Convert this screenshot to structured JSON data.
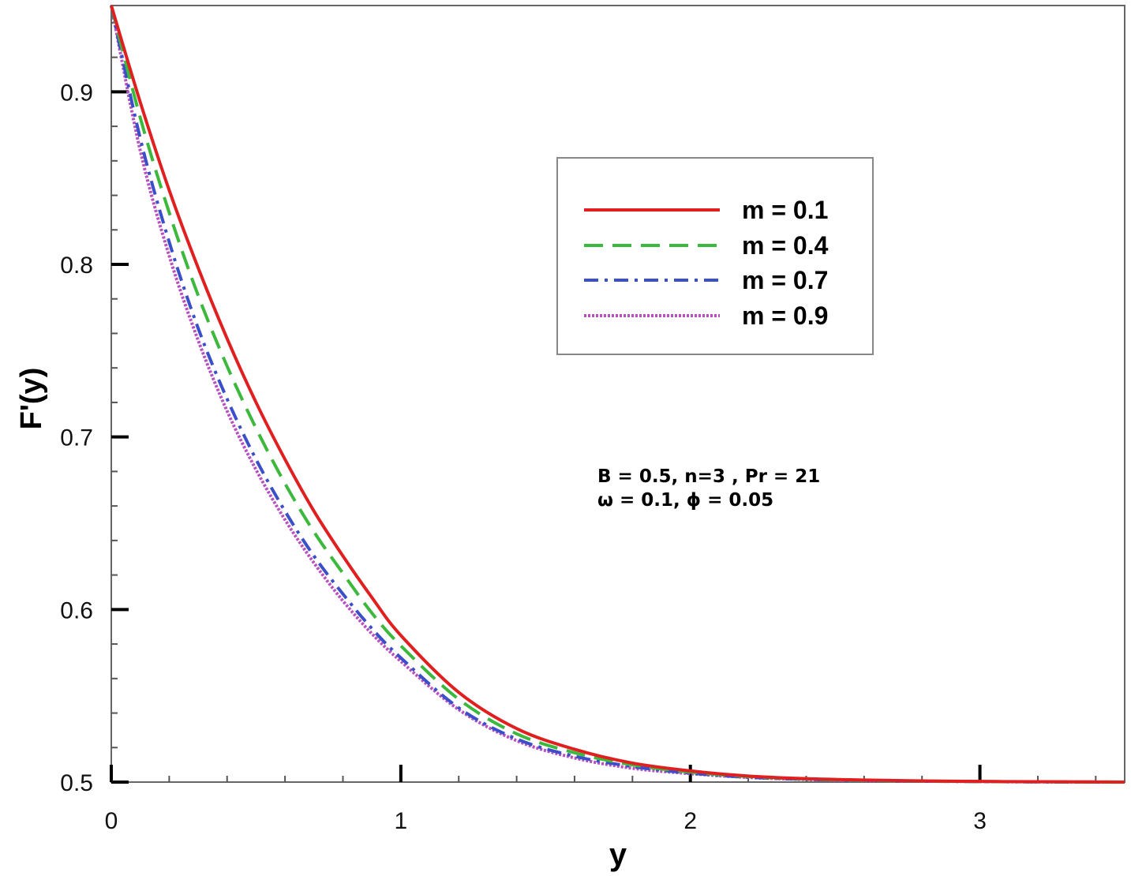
{
  "chart_data": {
    "type": "line",
    "xlabel": "y",
    "ylabel": "F'(y)",
    "xlim": [
      0,
      3.5
    ],
    "ylim": [
      0.5,
      0.95
    ],
    "x_ticks": [
      "0",
      "1",
      "2",
      "3"
    ],
    "y_ticks": [
      "0.5",
      "0.6",
      "0.7",
      "0.8",
      "0.9"
    ],
    "grid": false,
    "legend_position": "top-right",
    "annotation": [
      "B = 0.5, n=3 , Pr = 21",
      "ω = 0.1, ϕ = 0.05"
    ],
    "x": [
      0,
      0.1,
      0.2,
      0.3,
      0.4,
      0.5,
      0.6,
      0.7,
      0.8,
      0.9,
      1.0,
      1.2,
      1.4,
      1.6,
      1.8,
      2.0,
      2.2,
      2.4,
      2.6,
      2.8,
      3.0,
      3.2,
      3.5
    ],
    "series": [
      {
        "name": "m = 0.1",
        "color": "#e02020",
        "dash": "solid",
        "values": [
          0.95,
          0.894,
          0.843,
          0.798,
          0.757,
          0.72,
          0.687,
          0.657,
          0.631,
          0.607,
          0.585,
          0.552,
          0.531,
          0.519,
          0.511,
          0.5065,
          0.5035,
          0.502,
          0.5012,
          0.5007,
          0.5004,
          0.5002,
          0.5
        ]
      },
      {
        "name": "m = 0.4",
        "color": "#3cb83c",
        "dash": "dashed",
        "values": [
          0.95,
          0.885,
          0.83,
          0.782,
          0.741,
          0.705,
          0.673,
          0.645,
          0.621,
          0.598,
          0.579,
          0.548,
          0.528,
          0.517,
          0.51,
          0.5058,
          0.5032,
          0.5018,
          0.501,
          0.5006,
          0.5003,
          0.5002,
          0.5
        ]
      },
      {
        "name": "m = 0.7",
        "color": "#3a4fc8",
        "dash": "dashdot",
        "values": [
          0.95,
          0.873,
          0.813,
          0.763,
          0.722,
          0.687,
          0.657,
          0.631,
          0.609,
          0.589,
          0.572,
          0.543,
          0.525,
          0.515,
          0.509,
          0.5052,
          0.5028,
          0.5016,
          0.5009,
          0.5005,
          0.5003,
          0.5001,
          0.5
        ]
      },
      {
        "name": "m = 0.9",
        "color": "#b84fc0",
        "dash": "dotted",
        "values": [
          0.95,
          0.866,
          0.805,
          0.756,
          0.715,
          0.681,
          0.652,
          0.627,
          0.605,
          0.586,
          0.57,
          0.542,
          0.524,
          0.514,
          0.508,
          0.5049,
          0.5027,
          0.5015,
          0.5008,
          0.5005,
          0.5003,
          0.5001,
          0.5
        ]
      }
    ]
  }
}
